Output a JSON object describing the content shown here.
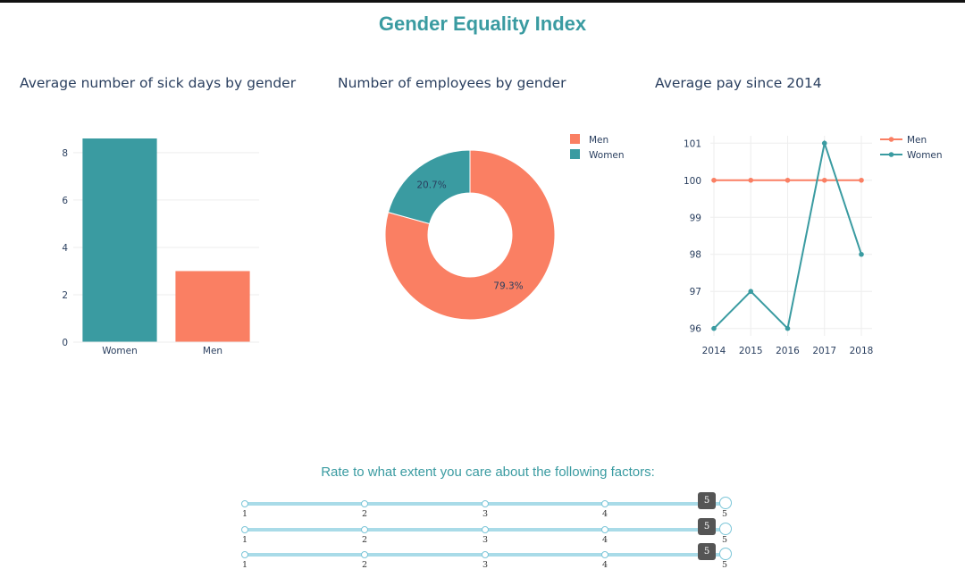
{
  "header": {
    "title": "Gender Equality Index"
  },
  "charts": {
    "sick_days": {
      "title": "Average number of sick days by gender"
    },
    "employees": {
      "title": "Number of employees by gender"
    },
    "pay": {
      "title": "Average pay since 2014"
    }
  },
  "chart_data": [
    {
      "type": "bar",
      "title": "Average number of sick days by gender",
      "categories": [
        "Women",
        "Men"
      ],
      "values": [
        8.6,
        3
      ],
      "colors": [
        "#3a9ba1",
        "#fa7f63"
      ],
      "ylim": [
        0,
        8.6
      ],
      "yticks": [
        0,
        2,
        4,
        6,
        8
      ],
      "grid": true
    },
    {
      "type": "pie",
      "title": "Number of employees by gender",
      "hole": true,
      "labels": [
        "Men",
        "Women"
      ],
      "values": [
        79.3,
        20.7
      ],
      "value_labels": [
        "79.3%",
        "20.7%"
      ],
      "colors": [
        "#fa7f63",
        "#3a9ba1"
      ],
      "legend": "top-right"
    },
    {
      "type": "line",
      "title": "Average pay since 2014",
      "x": [
        2014,
        2015,
        2016,
        2017,
        2018
      ],
      "series": [
        {
          "name": "Men",
          "color": "#fa7f63",
          "values": [
            100,
            100,
            100,
            100,
            100
          ]
        },
        {
          "name": "Women",
          "color": "#3a9ba1",
          "values": [
            96,
            97,
            96,
            101,
            98
          ]
        }
      ],
      "ylim": [
        95.8,
        101.2
      ],
      "yticks": [
        96,
        97,
        98,
        99,
        100,
        101
      ],
      "grid": true,
      "legend": "top-right"
    }
  ],
  "survey": {
    "title": "Rate to what extent you care about the following factors:",
    "sliders": [
      {
        "value": "5",
        "marks": [
          "1",
          "2",
          "3",
          "4",
          "5"
        ]
      },
      {
        "value": "5",
        "marks": [
          "1",
          "2",
          "3",
          "4",
          "5"
        ]
      },
      {
        "value": "5",
        "marks": [
          "1",
          "2",
          "3",
          "4",
          "5"
        ]
      }
    ]
  }
}
